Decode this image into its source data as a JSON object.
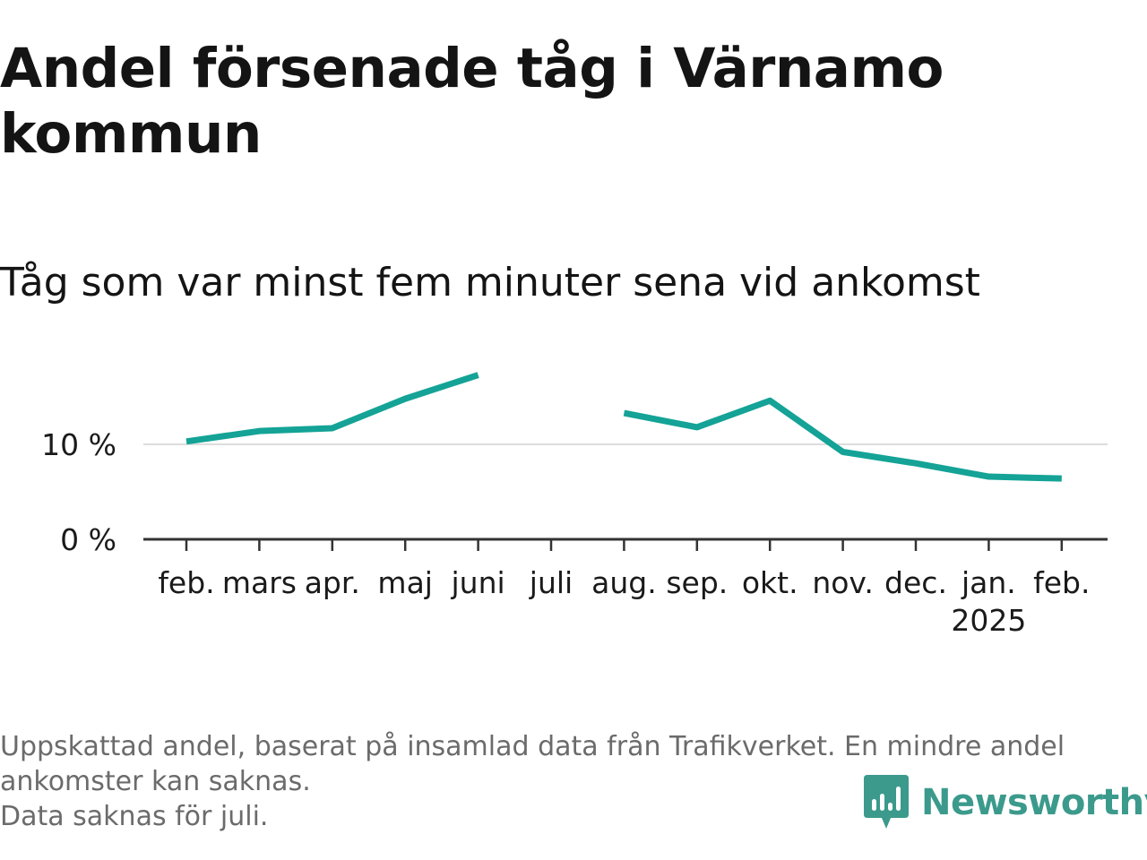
{
  "title": "Andel försenade tåg i Värnamo kommun",
  "subtitle": "Tåg som var minst fem minuter sena vid ankomst",
  "footer": {
    "note_line1": "Uppskattad andel, baserat på insamlad data från Trafikverket. En mindre andel ankomster kan saknas.",
    "note_line2": "Data saknas för juli."
  },
  "brand": {
    "name": "Newsworthy",
    "icon": "newsworthy-logo-icon",
    "color": "#3b9a8c"
  },
  "chart_data": {
    "type": "line",
    "categories": [
      "feb.",
      "mars",
      "apr.",
      "maj",
      "juni",
      "juli",
      "aug.",
      "sep.",
      "okt.",
      "nov.",
      "dec.",
      "jan.",
      "feb."
    ],
    "year_label": "2025",
    "year_label_index": 11,
    "series": [
      {
        "values": [
          10.3,
          11.4,
          11.7,
          14.8,
          17.3,
          null,
          13.3,
          11.8,
          14.6,
          9.2,
          8.0,
          6.6,
          6.4
        ],
        "color": "#14a396"
      }
    ],
    "yticks": [
      0,
      10
    ],
    "ytick_labels": [
      "0 %",
      "10 %"
    ],
    "ylim": [
      0,
      20
    ],
    "grid": "horizontal",
    "axis_color": "#333333",
    "grid_color": "#dddddd"
  }
}
